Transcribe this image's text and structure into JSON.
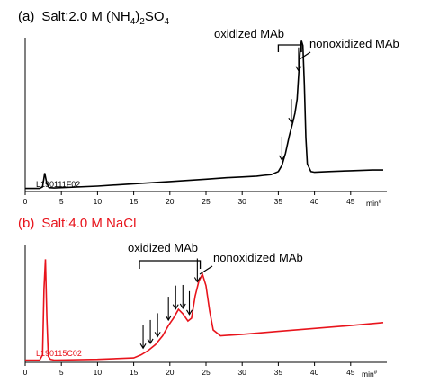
{
  "chart_data": [
    {
      "type": "line",
      "panel_label": "(a)",
      "title_prefix": "Salt",
      "title_sep": ":",
      "title_pre": "2.0 M (NH",
      "title_sub1": "4",
      "title_mid": ")",
      "title_sub2": "2",
      "title_so": "SO",
      "title_sub3": "4",
      "color": "#000000",
      "xlabel": "min",
      "xlim": [
        0,
        50
      ],
      "xticks": [
        0,
        5,
        10,
        15,
        20,
        25,
        30,
        35,
        40,
        45
      ],
      "sample_id": "L190111F02",
      "annotation_oxidized": "oxidized MAb",
      "annotation_nonoxidized": "nonoxidized MAb",
      "arrows_at": [
        35.5,
        36.8,
        37.8
      ],
      "bracket_range": [
        35.0,
        38.2
      ],
      "series": [
        {
          "x": [
            0,
            2,
            2.4,
            2.7,
            3.0,
            3.3,
            4,
            10,
            15,
            20,
            25,
            28,
            30,
            32,
            33,
            34,
            35,
            35.5,
            36,
            36.5,
            37.0,
            37.3,
            37.6,
            37.8,
            38.0,
            38.2,
            38.4,
            38.6,
            38.8,
            39.0,
            39.5,
            40,
            42,
            45,
            48,
            49.5
          ],
          "y": [
            2,
            2,
            3,
            12,
            5,
            2.5,
            2.3,
            3.5,
            5,
            6.5,
            8,
            9,
            9.5,
            10,
            10.5,
            11,
            13,
            17,
            25,
            36,
            45,
            51,
            60,
            75,
            90,
            98,
            95,
            70,
            35,
            18,
            13,
            12.5,
            13,
            13.5,
            14,
            14
          ]
        }
      ]
    },
    {
      "type": "line",
      "panel_label": "(b)",
      "title_prefix": "Salt",
      "title_sep": ":",
      "title_pre": "4.0 M NaCl",
      "color": "#e8141c",
      "xlabel": "min",
      "xlim": [
        0,
        50
      ],
      "xticks": [
        0,
        5,
        10,
        15,
        20,
        25,
        30,
        35,
        40,
        45
      ],
      "sample_id": "L190115C02",
      "annotation_oxidized": "oxidized MAb",
      "annotation_nonoxidized": "nonoxidized MAb",
      "arrows_at": [
        16.3,
        17.3,
        18.3,
        19.8,
        20.8,
        21.8,
        22.7,
        23.8
      ],
      "bracket_range": [
        15.8,
        24.2
      ],
      "series": [
        {
          "x": [
            0,
            2,
            2.4,
            2.6,
            2.8,
            3.0,
            3.2,
            3.5,
            4,
            10,
            15,
            16,
            17,
            18,
            19,
            19.8,
            20.5,
            21.2,
            21.8,
            22.5,
            23.0,
            23.5,
            24.0,
            24.5,
            25.0,
            25.5,
            26.0,
            27,
            30,
            35,
            40,
            45,
            49.5
          ],
          "y": [
            1.5,
            1.5,
            5,
            50,
            70,
            30,
            4,
            2,
            1.5,
            2,
            3,
            5,
            8,
            12,
            18,
            25,
            30,
            36,
            33,
            28,
            30,
            45,
            55,
            60,
            52,
            35,
            22,
            18,
            19,
            21,
            23,
            25,
            27
          ]
        }
      ]
    }
  ]
}
